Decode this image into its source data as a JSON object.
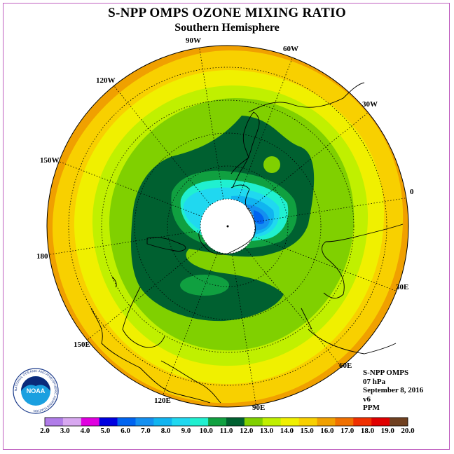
{
  "title": "S-NPP OMPS OZONE MIXING RATIO",
  "subtitle": "Southern Hemisphere",
  "longitude_labels": [
    "90W",
    "60W",
    "30W",
    "0",
    "30E",
    "60E",
    "90E",
    "120E",
    "150E",
    "180",
    "150W",
    "120W"
  ],
  "info": {
    "instrument": "S-NPP OMPS",
    "pressure_level": "07 hPa",
    "date": "September 8, 2016",
    "version": "v6",
    "units": "PPM"
  },
  "logo": {
    "text": "NOAA",
    "ring_text": "NATIONAL OCEANIC AND ATMOSPHERIC ADMINISTRATION"
  },
  "colorbar": {
    "ticks": [
      "2.0",
      "3.0",
      "4.0",
      "5.0",
      "6.0",
      "7.0",
      "8.0",
      "9.0",
      "10.0",
      "11.0",
      "12.0",
      "13.0",
      "14.0",
      "15.0",
      "16.0",
      "17.0",
      "18.0",
      "19.0",
      "20.0"
    ],
    "colors": [
      "#b07ce8",
      "#d8a8f0",
      "#e000e0",
      "#0000e0",
      "#0064f0",
      "#1490f0",
      "#10b4f0",
      "#20d8f0",
      "#20f0d0",
      "#10a040",
      "#006030",
      "#80d000",
      "#c0f000",
      "#f0f000",
      "#f8d000",
      "#f0a000",
      "#f07000",
      "#f03000",
      "#e00000",
      "#704020"
    ],
    "labels_used": 19
  },
  "colors": {
    "polar_night": "#ffffff",
    "coastline": "#000000",
    "frame": "#c060c0"
  }
}
